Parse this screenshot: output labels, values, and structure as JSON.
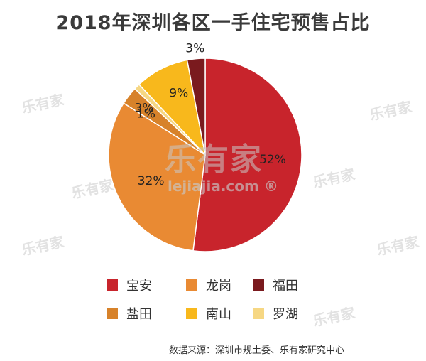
{
  "title": "2018年深圳各区一手住宅预售占比",
  "source": "数据来源：深圳市规土委、乐有家研究中心",
  "watermark": {
    "brand": "乐有家",
    "url": "lejiajia.com ®"
  },
  "chart_data": {
    "type": "pie",
    "title": "2018年深圳各区一手住宅预售占比",
    "slices": [
      {
        "name": "宝安",
        "label": "52%",
        "value": 52,
        "color": "#c8242c"
      },
      {
        "name": "龙岗",
        "label": "32%",
        "value": 32,
        "color": "#e98a33"
      },
      {
        "name": "盐田",
        "label": "3%",
        "value": 3,
        "color": "#d7822a"
      },
      {
        "name": "罗湖",
        "label": "1%",
        "value": 1,
        "color": "#f6d783"
      },
      {
        "name": "南山",
        "label": "9%",
        "value": 9,
        "color": "#f8b81c"
      },
      {
        "name": "福田",
        "label": "3%",
        "value": 3,
        "color": "#7a1a1e"
      }
    ],
    "legend": [
      {
        "name": "宝安",
        "color": "#c8242c"
      },
      {
        "name": "龙岗",
        "color": "#e98a33"
      },
      {
        "name": "福田",
        "color": "#7a1a1e"
      },
      {
        "name": "盐田",
        "color": "#d7822a"
      },
      {
        "name": "南山",
        "color": "#f8b81c"
      },
      {
        "name": "罗湖",
        "color": "#f6d783"
      }
    ],
    "legend_position": "bottom"
  }
}
